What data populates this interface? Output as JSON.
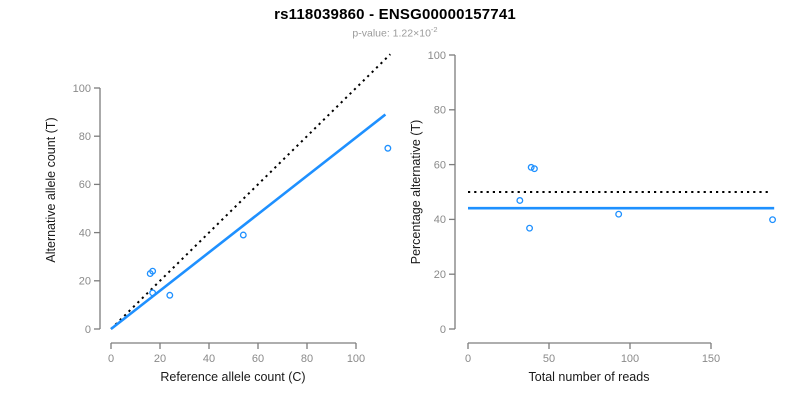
{
  "header": {
    "title": "rs118039860 - ENSG00000157741",
    "subtitle_label": "p-value: ",
    "subtitle_value": "1.22×10",
    "subtitle_exponent": "-2"
  },
  "colors": {
    "accent_blue": "#1E90FF",
    "reference_black": "#000000",
    "axis_gray": "#7d7d7d",
    "tick_label_gray": "#8a8a8a",
    "axis_title_black": "#1a1a1a",
    "subtitle_gray": "#9b9b9b",
    "background": "#ffffff"
  },
  "chart_data": [
    {
      "type": "scatter",
      "panel": "left",
      "xlabel": "Reference allele count (C)",
      "ylabel": "Alternative allele count (T)",
      "xticks": [
        0,
        20,
        40,
        60,
        80,
        100
      ],
      "yticks": [
        0,
        20,
        40,
        60,
        80,
        100
      ],
      "xlim": [
        0,
        115
      ],
      "ylim": [
        0,
        115
      ],
      "grid": false,
      "points": [
        [
          16,
          23
        ],
        [
          17,
          24
        ],
        [
          17,
          15
        ],
        [
          24,
          14
        ],
        [
          54,
          39
        ],
        [
          113,
          75
        ]
      ],
      "lines": [
        {
          "name": "identity-line",
          "style": "dotted",
          "color_key": "reference_black",
          "from": [
            0,
            0
          ],
          "to": [
            114,
            114
          ]
        },
        {
          "name": "regression-line",
          "style": "solid",
          "color_key": "accent_blue",
          "from": [
            0,
            0
          ],
          "to": [
            112,
            89
          ]
        }
      ]
    },
    {
      "type": "scatter",
      "panel": "right",
      "xlabel": "Total number of reads",
      "ylabel": "Percentage alternative (T)",
      "xticks": [
        0,
        50,
        100,
        150
      ],
      "yticks": [
        0,
        20,
        40,
        60,
        80,
        100
      ],
      "xlim": [
        0,
        190
      ],
      "ylim": [
        0,
        100
      ],
      "grid": false,
      "points": [
        [
          39,
          59
        ],
        [
          41,
          58.5
        ],
        [
          32,
          46.9
        ],
        [
          38,
          36.8
        ],
        [
          93,
          41.9
        ],
        [
          188,
          39.9
        ]
      ],
      "lines": [
        {
          "name": "expected-50pct-line",
          "style": "dotted",
          "color_key": "reference_black",
          "y": 50,
          "x_from": 0,
          "x_to": 186
        },
        {
          "name": "mean-percentage-line",
          "style": "solid",
          "color_key": "accent_blue",
          "y": 44.1,
          "x_from": 0,
          "x_to": 189
        }
      ]
    }
  ]
}
